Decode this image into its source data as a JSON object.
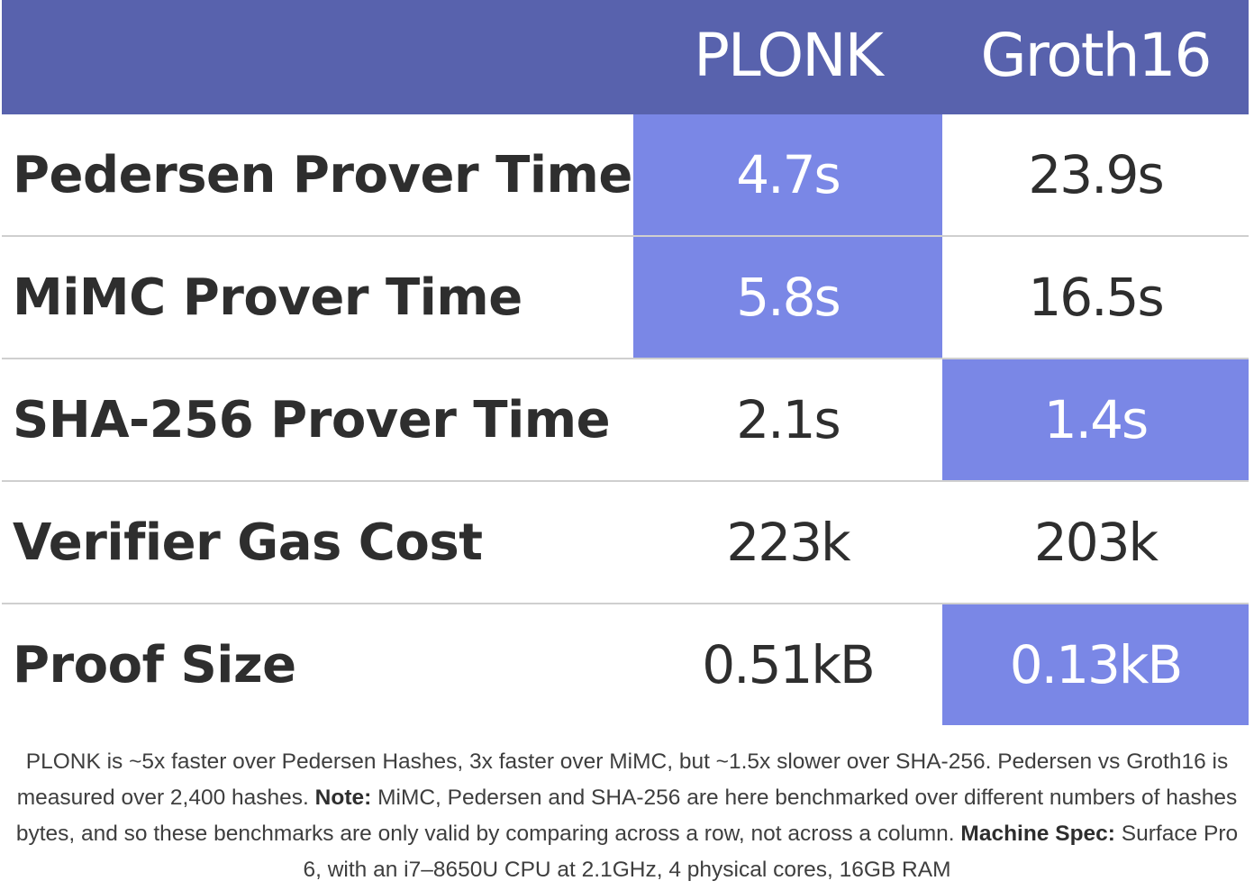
{
  "table": {
    "columns": [
      "PLONK",
      "Groth16"
    ],
    "rows": [
      {
        "label": "Pedersen Prover Time",
        "values": [
          "4.7s",
          "23.9s"
        ],
        "highlight": [
          true,
          false
        ]
      },
      {
        "label": "MiMC Prover Time",
        "values": [
          "5.8s",
          "16.5s"
        ],
        "highlight": [
          true,
          false
        ]
      },
      {
        "label": "SHA-256 Prover Time",
        "values": [
          "2.1s",
          "1.4s"
        ],
        "highlight": [
          false,
          true
        ]
      },
      {
        "label": "Verifier Gas Cost",
        "values": [
          "223k",
          "203k"
        ],
        "highlight": [
          false,
          false
        ]
      },
      {
        "label": "Proof Size",
        "values": [
          "0.51kB",
          "0.13kB"
        ],
        "highlight": [
          false,
          true
        ]
      }
    ]
  },
  "caption": {
    "part1": "PLONK is ~5x faster over Pedersen Hashes, 3x faster over MiMC, but ~1.5x slower over SHA-256. Pedersen vs Groth16 is measured over 2,400 hashes. ",
    "note_label": "Note:",
    "part2": " MiMC, Pedersen and SHA-256 are here benchmarked over different numbers of hashes bytes, and so these benchmarks are only valid by comparing across a row, not across a column. ",
    "spec_label": "Machine Spec:",
    "part3": " Surface Pro 6, with an i7–8650U CPU at 2.1GHz, 4 physical cores, 16GB RAM"
  },
  "colors": {
    "header_bg": "#5862ad",
    "highlight_bg": "#7a87e6",
    "divider": "#cfcfcf",
    "text": "#2e2e2e"
  }
}
